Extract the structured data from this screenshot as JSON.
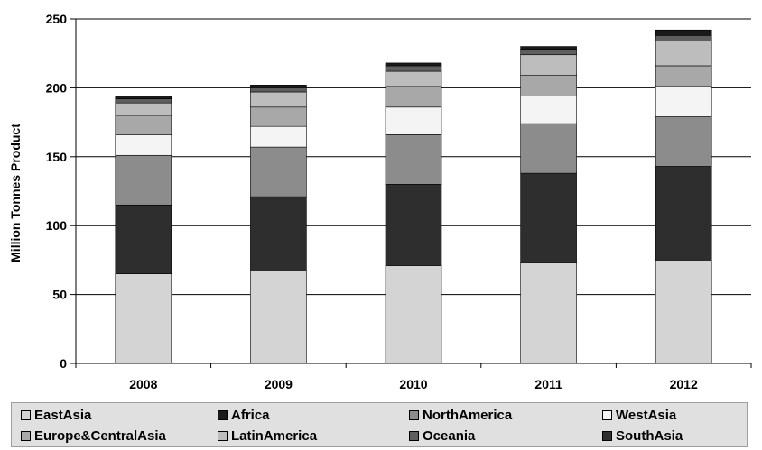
{
  "chart_data": {
    "type": "bar",
    "stacked": true,
    "categories": [
      "2008",
      "2009",
      "2010",
      "2011",
      "2012"
    ],
    "ylabel": "Million Tonnes Product",
    "ylim": [
      0,
      250
    ],
    "yticks": [
      "0",
      "50",
      "100",
      "150",
      "200",
      "250"
    ],
    "grid": true,
    "legend_position": "bottom",
    "series": [
      {
        "name": "EastAsia",
        "color": "#d4d4d4",
        "values": [
          65,
          67,
          71,
          73,
          75
        ]
      },
      {
        "name": "SouthAsia",
        "color": "#2e2e2e",
        "values": [
          50,
          54,
          59,
          65,
          68
        ]
      },
      {
        "name": "NorthAmerica",
        "color": "#8c8c8c",
        "values": [
          36,
          36,
          36,
          36,
          36
        ]
      },
      {
        "name": "WestAsia",
        "color": "#f4f4f4",
        "values": [
          15,
          15,
          20,
          20,
          22
        ]
      },
      {
        "name": "Europe&CentralAsia",
        "color": "#a8a8a8",
        "values": [
          14,
          14,
          15,
          15,
          15
        ]
      },
      {
        "name": "LatinAmerica",
        "color": "#bdbdbd",
        "values": [
          9,
          11,
          11,
          15,
          18
        ]
      },
      {
        "name": "Oceania",
        "color": "#5e5e5e",
        "values": [
          3,
          3,
          4,
          4,
          4
        ]
      },
      {
        "name": "Africa",
        "color": "#1a1a1a",
        "values": [
          2,
          2,
          2,
          2,
          4
        ]
      }
    ]
  },
  "legend": {
    "items": [
      {
        "label": "EastAsia",
        "color": "#d4d4d4"
      },
      {
        "label": "Africa",
        "color": "#1a1a1a"
      },
      {
        "label": "NorthAmerica",
        "color": "#8c8c8c"
      },
      {
        "label": "WestAsia",
        "color": "#f4f4f4"
      },
      {
        "label": "Europe&CentralAsia",
        "color": "#a8a8a8"
      },
      {
        "label": "LatinAmerica",
        "color": "#bdbdbd"
      },
      {
        "label": "Oceania",
        "color": "#5e5e5e"
      },
      {
        "label": "SouthAsia",
        "color": "#2e2e2e"
      }
    ]
  }
}
